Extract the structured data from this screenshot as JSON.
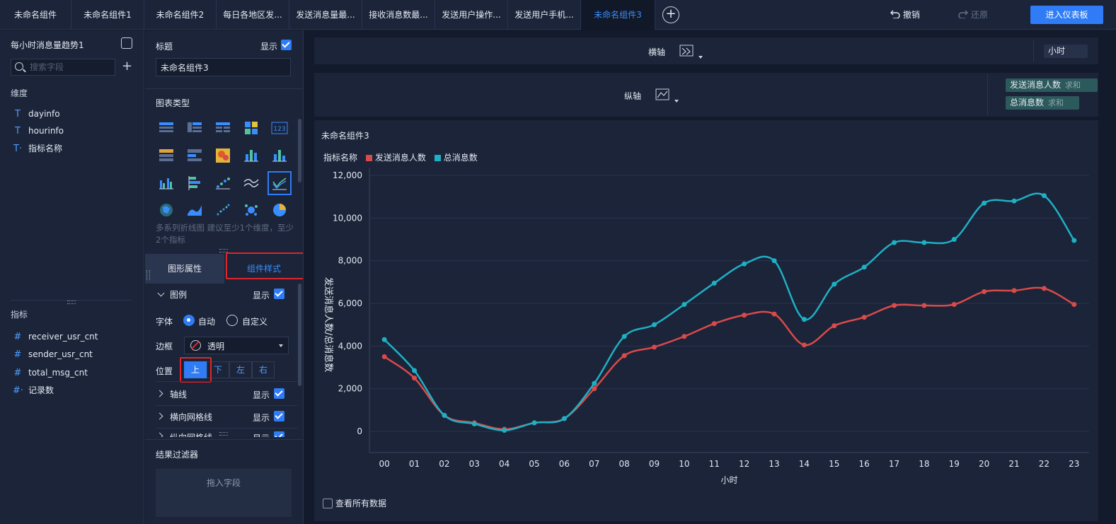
{
  "tabs": [
    {
      "label": "未命名组件",
      "active": false
    },
    {
      "label": "未命名组件1",
      "active": false
    },
    {
      "label": "未命名组件2",
      "active": false
    },
    {
      "label": "每日各地区发...",
      "active": false
    },
    {
      "label": "发送消息量最...",
      "active": false
    },
    {
      "label": "接收消息数最...",
      "active": false
    },
    {
      "label": "发送用户操作...",
      "active": false
    },
    {
      "label": "发送用户手机...",
      "active": false
    },
    {
      "label": "未命名组件3",
      "active": true
    }
  ],
  "toolbar": {
    "undo_label": "撤销",
    "redo_label": "还原",
    "enter_dashboard_label": "进入仪表板",
    "add_tab_icon": "plus-circle-icon"
  },
  "field_panel": {
    "dataset_name": "每小时消息量趋势1",
    "search_placeholder": "搜索字段",
    "dimensions_title": "维度",
    "dimensions": [
      {
        "name": "dayinfo",
        "icon": "T"
      },
      {
        "name": "hourinfo",
        "icon": "T"
      },
      {
        "name": "指标名称",
        "icon": "T·"
      }
    ],
    "measures_title": "指标",
    "measures": [
      {
        "name": "receiver_usr_cnt",
        "icon": "#"
      },
      {
        "name": "sender_usr_cnt",
        "icon": "#"
      },
      {
        "name": "total_msg_cnt",
        "icon": "#"
      },
      {
        "name": "记录数",
        "icon": "#·"
      }
    ]
  },
  "config_panel": {
    "title_label": "标题",
    "show_label": "显示",
    "title_value": "未命名组件3",
    "chart_type_label": "图表类型",
    "chart_hint": "多系列折线图 建议至少1个维度，至少2个指标",
    "tabs": {
      "graph_props": "图形属性",
      "component_style": "组件样式"
    },
    "legend_label": "图例",
    "font_label": "字体",
    "font_auto": "自动",
    "font_custom": "自定义",
    "border_label": "边框",
    "border_value": "透明",
    "position_label": "位置",
    "positions": [
      "上",
      "下",
      "左",
      "右"
    ],
    "axis_label": "轴线",
    "hgrid_label": "横向网格线",
    "vgrid_label": "纵向网格线",
    "result_filter_label": "结果过滤器",
    "drop_field_label": "拖入字段"
  },
  "shelves": {
    "x_label": "横轴",
    "y_label": "纵轴",
    "x_field": "小时",
    "y_fields": [
      {
        "name": "发送消息人数",
        "agg": "求和"
      },
      {
        "name": "总消息数",
        "agg": "求和"
      }
    ]
  },
  "chart_card": {
    "title": "未命名组件3",
    "legend_title": "指标名称",
    "view_all_label": "查看所有数据"
  },
  "chart_data": {
    "type": "line",
    "title": "未命名组件3",
    "xlabel": "小时",
    "ylabel": "发送消息人数/总消息数",
    "categories": [
      "00",
      "01",
      "02",
      "03",
      "04",
      "05",
      "06",
      "07",
      "08",
      "09",
      "10",
      "11",
      "12",
      "13",
      "14",
      "15",
      "16",
      "17",
      "18",
      "19",
      "20",
      "21",
      "22",
      "23"
    ],
    "ylim": [
      0,
      12000
    ],
    "yticks": [
      0,
      2000,
      4000,
      6000,
      8000,
      10000,
      12000
    ],
    "ytick_labels": [
      "0",
      "2,000",
      "4,000",
      "6,000",
      "8,000",
      "10,000",
      "12,000"
    ],
    "legend_position": "top-left",
    "grid": true,
    "series": [
      {
        "name": "发送消息人数",
        "color": "#d94a4a",
        "values": [
          3500,
          2500,
          750,
          400,
          100,
          400,
          600,
          2000,
          3550,
          3950,
          4450,
          5050,
          5450,
          5500,
          4050,
          4950,
          5350,
          5900,
          5900,
          5950,
          6550,
          6600,
          6700,
          5950
        ]
      },
      {
        "name": "总消息数",
        "color": "#1fb0c4",
        "values": [
          4300,
          2850,
          750,
          350,
          50,
          400,
          600,
          2250,
          4450,
          5000,
          5950,
          6950,
          7850,
          8000,
          5250,
          6900,
          7700,
          8850,
          8850,
          9000,
          10700,
          10800,
          11050,
          8950
        ]
      }
    ]
  },
  "colors": {
    "accent": "#2f7cf6",
    "highlight_box": "#e0252c"
  }
}
